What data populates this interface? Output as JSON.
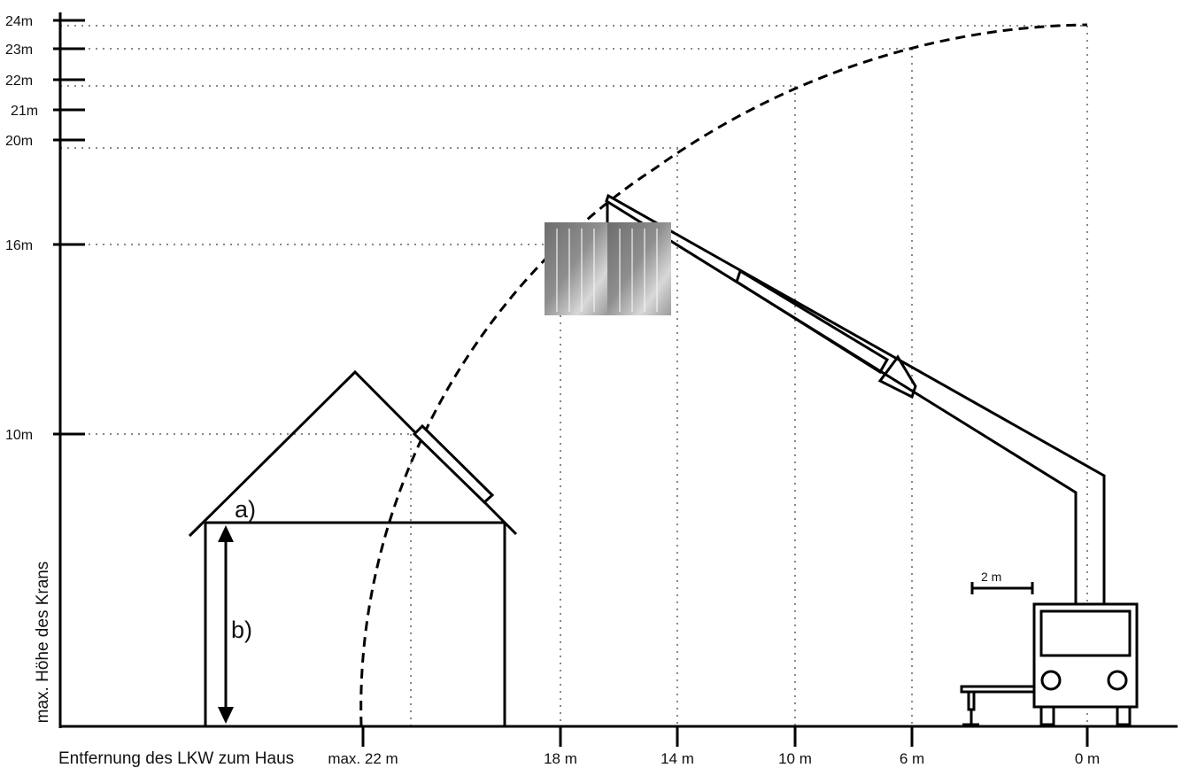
{
  "diagram": {
    "y_axis_label": "max. Höhe des Krans",
    "x_axis_label": "Entfernung des LKW zum Haus",
    "y_ticks": [
      "24m",
      "23m",
      "22m",
      "21m",
      "20m",
      "16m",
      "10m"
    ],
    "x_ticks": [
      "max. 22 m",
      "18 m",
      "14 m",
      "10 m",
      "6 m",
      "0 m"
    ],
    "house_roof_label": "a)",
    "house_height_label": "b)",
    "scale_bar_label": "2 m"
  }
}
